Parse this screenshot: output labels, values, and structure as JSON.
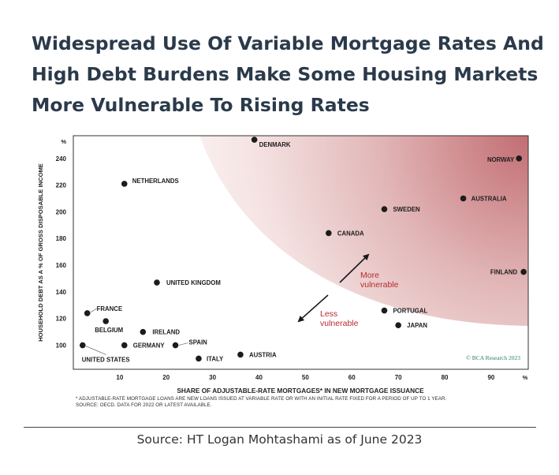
{
  "headline": {
    "line1": "Widespread Use Of Variable Mortgage Rates And",
    "line2": "High Debt Burdens Make Some Housing Markets",
    "line3": "More Vulnerable To Rising Rates"
  },
  "chart_data": {
    "type": "scatter",
    "xlabel": "SHARE OF ADJUSTABLE-RATE MORTGAGES* IN NEW MORTGAGE ISSUANCE",
    "ylabel": "HOUSEHOLD DEBT AS A % OF GROSS DISPOSABLE INCOME",
    "x_unit": "%",
    "y_unit": "%",
    "xlim": [
      0,
      98
    ],
    "ylim": [
      82,
      257
    ],
    "x_ticks": [
      10,
      20,
      30,
      40,
      50,
      60,
      70,
      80,
      90
    ],
    "y_ticks": [
      100,
      120,
      140,
      160,
      180,
      200,
      220,
      240
    ],
    "grid": false,
    "points": [
      {
        "label": "DENMARK",
        "x": 39,
        "y": 254
      },
      {
        "label": "NORWAY",
        "x": 96,
        "y": 240
      },
      {
        "label": "NETHERLANDS",
        "x": 11,
        "y": 221
      },
      {
        "label": "AUSTRALIA",
        "x": 84,
        "y": 210
      },
      {
        "label": "SWEDEN",
        "x": 67,
        "y": 202
      },
      {
        "label": "CANADA",
        "x": 55,
        "y": 184
      },
      {
        "label": "FINLAND",
        "x": 97,
        "y": 155
      },
      {
        "label": "UNITED KINGDOM",
        "x": 18,
        "y": 147
      },
      {
        "label": "FRANCE",
        "x": 3,
        "y": 124
      },
      {
        "label": "PORTUGAL",
        "x": 67,
        "y": 126
      },
      {
        "label": "BELGIUM",
        "x": 7,
        "y": 118
      },
      {
        "label": "IRELAND",
        "x": 15,
        "y": 110
      },
      {
        "label": "JAPAN",
        "x": 70,
        "y": 115
      },
      {
        "label": "UNITED STATES",
        "x": 2,
        "y": 100
      },
      {
        "label": "GERMANY",
        "x": 11,
        "y": 100
      },
      {
        "label": "SPAIN",
        "x": 22,
        "y": 100
      },
      {
        "label": "AUSTRIA",
        "x": 36,
        "y": 93
      },
      {
        "label": "ITALY",
        "x": 27,
        "y": 90
      }
    ],
    "annotations": {
      "more": "More\nvulnerable",
      "less": "Less\nvulnerable"
    },
    "colors": {
      "points": "#1c1c1c",
      "zone_strong": "#c46f74",
      "annotation": "#b82a2f",
      "axis": "#333333"
    },
    "credit": "© BCA Research 2023"
  },
  "footnote": {
    "line1": "* ADJUSTABLE-RATE MORTGAGE LOANS ARE NEW LOANS ISSUED AT VARIABLE RATE OR WITH AN INITIAL RATE FIXED FOR A PERIOD OF UP TO 1 YEAR.",
    "line2": "SOURCE: OECD. DATA FOR 2022 OR LATEST AVAILABLE."
  },
  "source": "Source: HT Logan Mohtashami as of June 2023"
}
